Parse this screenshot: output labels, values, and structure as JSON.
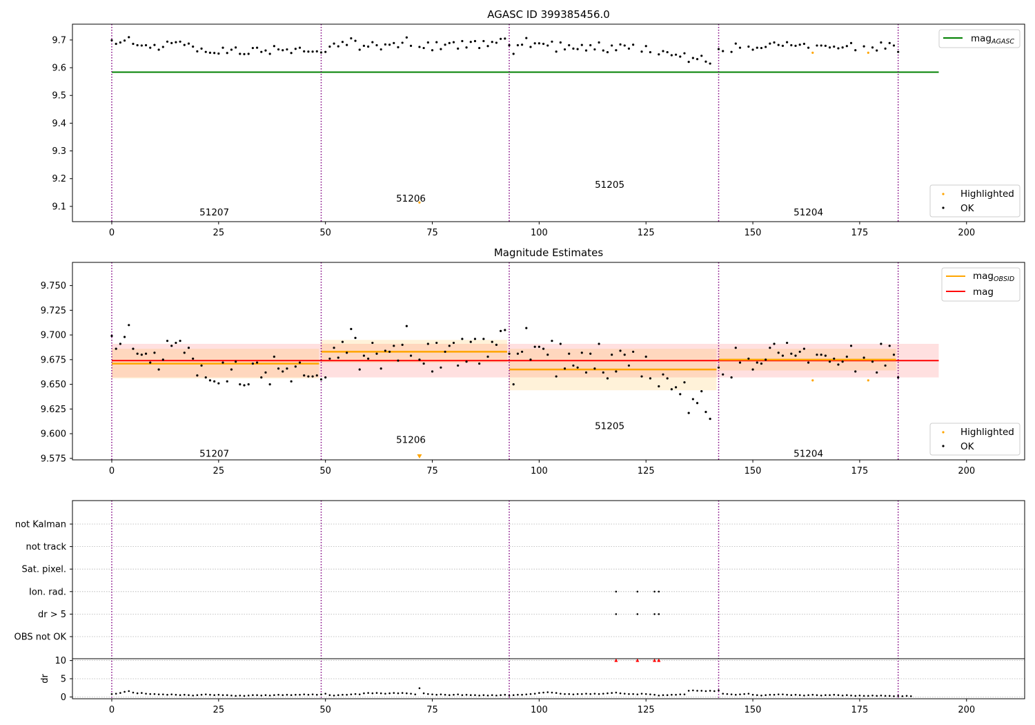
{
  "figure": {
    "panel1_title": "AGASC ID 399385456.0",
    "panel2_title": "Magnitude Estimates",
    "panel3_ylabel": "dr"
  },
  "colors": {
    "ok": "#000000",
    "highlighted": "#ffa500",
    "agasc": "#008000",
    "mag": "#ff0000",
    "mag_obsid": "#ffa500",
    "obs_boundary": "#800080",
    "dr_flag": "#ff0000",
    "grid": "#b0b0b0"
  },
  "legends": {
    "panel1_top": [
      "mag_AGASC"
    ],
    "panel1_top_parts": {
      "base": "mag",
      "sub": "AGASC"
    },
    "panel2_top_parts": [
      {
        "base": "mag",
        "sub": "OBSID"
      },
      {
        "base": "mag",
        "sub": ""
      }
    ],
    "points": [
      "Highlighted",
      "OK"
    ]
  },
  "chart_data": [
    {
      "type": "scatter",
      "title": "AGASC ID 399385456.0",
      "xlabel": "",
      "ylabel": "",
      "xlim": [
        -9.2,
        213.6
      ],
      "ylim": [
        9.045,
        9.757
      ],
      "xticks": [
        "0",
        "25",
        "50",
        "75",
        "100",
        "125",
        "150",
        "175",
        "200"
      ],
      "yticks": [
        "9.1",
        "9.2",
        "9.3",
        "9.4",
        "9.5",
        "9.6",
        "9.7"
      ],
      "obs_boundaries": [
        0,
        49,
        93,
        142,
        184
      ],
      "obsids": [
        {
          "label": "51207",
          "x": 24,
          "y": 9.08
        },
        {
          "label": "51206",
          "x": 70,
          "y": 9.13
        },
        {
          "label": "51205",
          "x": 116.5,
          "y": 9.18
        },
        {
          "label": "51204",
          "x": 163,
          "y": 9.08
        }
      ],
      "mag_agasc": {
        "value": 9.584,
        "x_range": [
          0,
          193.5
        ]
      },
      "legend_position": [
        "upper right",
        "lower right"
      ]
    },
    {
      "type": "scatter",
      "title": "Magnitude Estimates",
      "xlim": [
        -9.2,
        213.6
      ],
      "ylim": [
        9.5735,
        9.7735
      ],
      "xticks": [
        "0",
        "25",
        "50",
        "75",
        "100",
        "125",
        "150",
        "175",
        "200"
      ],
      "yticks": [
        "9.575",
        "9.600",
        "9.625",
        "9.650",
        "9.675",
        "9.700",
        "9.725",
        "9.750"
      ],
      "obs_boundaries": [
        0,
        49,
        93,
        142,
        184
      ],
      "obsids": [
        {
          "label": "51207",
          "x": 24,
          "y": 9.58
        },
        {
          "label": "51206",
          "x": 70,
          "y": 9.594
        },
        {
          "label": "51205",
          "x": 116.5,
          "y": 9.608
        },
        {
          "label": "51204",
          "x": 163,
          "y": 9.58
        }
      ],
      "mag": {
        "value": 9.674,
        "band": [
          9.657,
          9.691
        ],
        "x_range": [
          0,
          193.5
        ]
      },
      "mag_obsid": [
        {
          "x_range": [
            0,
            48.5
          ],
          "value": 9.671,
          "band": [
            9.656,
            9.686
          ]
        },
        {
          "x_range": [
            49,
            92.5
          ],
          "value": 9.683,
          "band": [
            9.672,
            9.695
          ]
        },
        {
          "x_range": [
            93,
            141.5
          ],
          "value": 9.665,
          "band": [
            9.644,
            9.686
          ]
        },
        {
          "x_range": [
            142,
            183.5
          ],
          "value": 9.675,
          "band": [
            9.664,
            9.686
          ]
        }
      ],
      "highlighted": [
        {
          "x": 72,
          "y": 9.577,
          "marker": "down-triangle"
        },
        {
          "x": 164,
          "y": 9.654
        },
        {
          "x": 177,
          "y": 9.654
        }
      ],
      "ok_points": [
        [
          0,
          9.699
        ],
        [
          1,
          9.686
        ],
        [
          2,
          9.691
        ],
        [
          3,
          9.698
        ],
        [
          4,
          9.71
        ],
        [
          5,
          9.686
        ],
        [
          6,
          9.681
        ],
        [
          7,
          9.68
        ],
        [
          8,
          9.681
        ],
        [
          9,
          9.672
        ],
        [
          10,
          9.682
        ],
        [
          11,
          9.665
        ],
        [
          12,
          9.675
        ],
        [
          13,
          9.694
        ],
        [
          14,
          9.689
        ],
        [
          15,
          9.692
        ],
        [
          16,
          9.694
        ],
        [
          17,
          9.682
        ],
        [
          18,
          9.687
        ],
        [
          19,
          9.676
        ],
        [
          20,
          9.659
        ],
        [
          21,
          9.669
        ],
        [
          22,
          9.657
        ],
        [
          23,
          9.654
        ],
        [
          24,
          9.653
        ],
        [
          25,
          9.651
        ],
        [
          26,
          9.672
        ],
        [
          27,
          9.653
        ],
        [
          28,
          9.665
        ],
        [
          29,
          9.673
        ],
        [
          30,
          9.65
        ],
        [
          31,
          9.649
        ],
        [
          32,
          9.65
        ],
        [
          33,
          9.671
        ],
        [
          34,
          9.672
        ],
        [
          35,
          9.657
        ],
        [
          36,
          9.662
        ],
        [
          37,
          9.65
        ],
        [
          38,
          9.678
        ],
        [
          39,
          9.666
        ],
        [
          40,
          9.663
        ],
        [
          41,
          9.666
        ],
        [
          42,
          9.653
        ],
        [
          43,
          9.668
        ],
        [
          44,
          9.672
        ],
        [
          45,
          9.659
        ],
        [
          46,
          9.658
        ],
        [
          47,
          9.658
        ],
        [
          48,
          9.659
        ],
        [
          49,
          9.655
        ],
        [
          50,
          9.657
        ],
        [
          51,
          9.676
        ],
        [
          52,
          9.687
        ],
        [
          53,
          9.677
        ],
        [
          54,
          9.693
        ],
        [
          55,
          9.682
        ],
        [
          56,
          9.706
        ],
        [
          57,
          9.697
        ],
        [
          58,
          9.665
        ],
        [
          59,
          9.679
        ],
        [
          60,
          9.676
        ],
        [
          61,
          9.692
        ],
        [
          62,
          9.681
        ],
        [
          63,
          9.666
        ],
        [
          64,
          9.684
        ],
        [
          65,
          9.683
        ],
        [
          66,
          9.689
        ],
        [
          67,
          9.674
        ],
        [
          68,
          9.69
        ],
        [
          69,
          9.709
        ],
        [
          70,
          9.679
        ],
        [
          72,
          9.675
        ],
        [
          73,
          9.671
        ],
        [
          74,
          9.691
        ],
        [
          75,
          9.663
        ],
        [
          76,
          9.692
        ],
        [
          77,
          9.667
        ],
        [
          78,
          9.683
        ],
        [
          79,
          9.689
        ],
        [
          80,
          9.692
        ],
        [
          81,
          9.669
        ],
        [
          82,
          9.696
        ],
        [
          83,
          9.673
        ],
        [
          84,
          9.693
        ],
        [
          85,
          9.696
        ],
        [
          86,
          9.671
        ],
        [
          87,
          9.696
        ],
        [
          88,
          9.678
        ],
        [
          89,
          9.693
        ],
        [
          90,
          9.69
        ],
        [
          91,
          9.704
        ],
        [
          92,
          9.705
        ],
        [
          93,
          9.681
        ],
        [
          94,
          9.65
        ],
        [
          95,
          9.681
        ],
        [
          96,
          9.683
        ],
        [
          97,
          9.707
        ],
        [
          98,
          9.675
        ],
        [
          99,
          9.688
        ],
        [
          100,
          9.688
        ],
        [
          101,
          9.686
        ],
        [
          102,
          9.68
        ],
        [
          103,
          9.694
        ],
        [
          104,
          9.658
        ],
        [
          105,
          9.691
        ],
        [
          106,
          9.666
        ],
        [
          107,
          9.681
        ],
        [
          108,
          9.669
        ],
        [
          109,
          9.667
        ],
        [
          110,
          9.682
        ],
        [
          111,
          9.662
        ],
        [
          112,
          9.681
        ],
        [
          113,
          9.666
        ],
        [
          114,
          9.691
        ],
        [
          115,
          9.662
        ],
        [
          116,
          9.656
        ],
        [
          117,
          9.68
        ],
        [
          118,
          9.663
        ],
        [
          119,
          9.684
        ],
        [
          120,
          9.68
        ],
        [
          121,
          9.669
        ],
        [
          122,
          9.683
        ],
        [
          124,
          9.658
        ],
        [
          125,
          9.678
        ],
        [
          126,
          9.656
        ],
        [
          128,
          9.648
        ],
        [
          129,
          9.66
        ],
        [
          130,
          9.656
        ],
        [
          131,
          9.645
        ],
        [
          132,
          9.647
        ],
        [
          133,
          9.64
        ],
        [
          134,
          9.652
        ],
        [
          135,
          9.621
        ],
        [
          136,
          9.635
        ],
        [
          137,
          9.631
        ],
        [
          138,
          9.643
        ],
        [
          139,
          9.622
        ],
        [
          140,
          9.615
        ],
        [
          142,
          9.667
        ],
        [
          143,
          9.66
        ],
        [
          145,
          9.657
        ],
        [
          146,
          9.687
        ],
        [
          147,
          9.672
        ],
        [
          149,
          9.676
        ],
        [
          150,
          9.665
        ],
        [
          151,
          9.672
        ],
        [
          152,
          9.671
        ],
        [
          153,
          9.675
        ],
        [
          154,
          9.687
        ],
        [
          155,
          9.691
        ],
        [
          156,
          9.682
        ],
        [
          157,
          9.679
        ],
        [
          158,
          9.692
        ],
        [
          159,
          9.681
        ],
        [
          160,
          9.679
        ],
        [
          161,
          9.683
        ],
        [
          162,
          9.686
        ],
        [
          163,
          9.672
        ],
        [
          165,
          9.68
        ],
        [
          166,
          9.68
        ],
        [
          167,
          9.679
        ],
        [
          168,
          9.673
        ],
        [
          169,
          9.676
        ],
        [
          170,
          9.67
        ],
        [
          171,
          9.673
        ],
        [
          172,
          9.678
        ],
        [
          173,
          9.689
        ],
        [
          174,
          9.663
        ],
        [
          176,
          9.677
        ],
        [
          178,
          9.673
        ],
        [
          179,
          9.662
        ],
        [
          180,
          9.691
        ],
        [
          181,
          9.669
        ],
        [
          182,
          9.689
        ],
        [
          183,
          9.68
        ],
        [
          184,
          9.657
        ]
      ],
      "legend_position": [
        "upper right",
        "lower right"
      ]
    },
    {
      "type": "scatter",
      "title": "",
      "xlim": [
        -9.2,
        213.6
      ],
      "xticks": [
        "0",
        "25",
        "50",
        "75",
        "100",
        "125",
        "150",
        "175",
        "200"
      ],
      "flag_rows": [
        "not Kalman",
        "not track",
        "Sat. pixel.",
        "Ion. rad.",
        "dr > 5",
        "OBS not OK"
      ],
      "flag_points": {
        "Ion. rad.": [
          118,
          123,
          127,
          128
        ],
        "dr > 5": [
          118,
          123,
          127,
          128
        ]
      },
      "obs_boundaries": [
        0,
        49,
        93,
        142,
        184
      ],
      "dr": {
        "ylabel": "dr",
        "ylim": [
          -0.5,
          10.5
        ],
        "yticks": [
          "0",
          "5",
          "10"
        ],
        "clipped_x": [
          118,
          123,
          127,
          128
        ],
        "clipped_value": 10,
        "values": [
          0.8,
          0.9,
          1.1,
          1.4,
          1.6,
          1.2,
          1.0,
          1.1,
          0.9,
          0.8,
          0.8,
          0.7,
          0.7,
          0.6,
          0.7,
          0.6,
          0.5,
          0.6,
          0.5,
          0.4,
          0.5,
          0.6,
          0.7,
          0.6,
          0.5,
          0.6,
          0.5,
          0.5,
          0.4,
          0.3,
          0.4,
          0.3,
          0.4,
          0.5,
          0.5,
          0.4,
          0.5,
          0.4,
          0.5,
          0.6,
          0.5,
          0.6,
          0.5,
          0.6,
          0.6,
          0.7,
          0.6,
          0.7,
          0.6,
          0.7,
          0.9,
          0.5,
          0.4,
          0.5,
          0.6,
          0.6,
          0.7,
          0.8,
          0.7,
          1.0,
          1.1,
          1.0,
          1.1,
          1.0,
          0.9,
          1.0,
          1.1,
          1.0,
          1.1,
          1.0,
          0.9,
          0.7,
          2.4,
          1.0,
          0.8,
          0.7,
          0.6,
          0.7,
          0.6,
          0.5,
          0.6,
          0.7,
          0.5,
          0.6,
          0.5,
          0.5,
          0.4,
          0.5,
          0.4,
          0.5,
          0.4,
          0.5,
          0.6,
          0.4,
          0.5,
          0.6,
          0.6,
          0.7,
          0.8,
          0.9,
          1.1,
          1.2,
          1.3,
          1.2,
          1.1,
          0.9,
          0.8,
          0.8,
          0.7,
          0.8,
          0.8,
          0.9,
          0.8,
          0.9,
          0.8,
          0.9,
          1.0,
          1.1,
          1.2,
          1.0,
          0.9,
          0.8,
          0.8,
          0.7,
          0.9,
          0.8,
          0.7,
          0.6,
          0.4,
          0.5,
          0.5,
          0.6,
          0.6,
          0.7,
          0.7,
          1.7,
          1.8,
          1.7,
          1.7,
          1.6,
          1.7,
          1.6,
          1.8,
          0.9,
          0.8,
          0.7,
          0.6,
          0.7,
          0.8,
          0.9,
          0.6,
          0.5,
          0.4,
          0.5,
          0.6,
          0.6,
          0.7,
          0.7,
          0.6,
          0.5,
          0.6,
          0.5,
          0.4,
          0.5,
          0.6,
          0.5,
          0.4,
          0.5,
          0.5,
          0.6,
          0.5,
          0.4,
          0.5,
          0.4,
          0.3,
          0.4,
          0.3,
          0.3,
          0.4,
          0.3,
          0.4,
          0.3,
          0.3,
          0.2,
          0.3,
          0.2,
          0.3,
          0.2
        ]
      }
    }
  ]
}
